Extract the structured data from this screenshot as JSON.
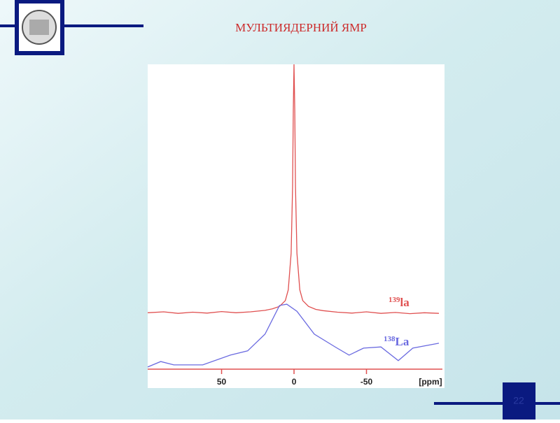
{
  "slide": {
    "title": "МУЛЬТИЯДЕРНИЙ ЯМР",
    "page_number": "22"
  },
  "chart_data": {
    "type": "line",
    "xlim": [
      101,
      -100
    ],
    "xticks": [
      50,
      0,
      -50
    ],
    "xlabel": "[ppm]",
    "ylim": [
      0,
      100
    ],
    "series": [
      {
        "name_sup": "139",
        "name": "la",
        "color": "#e05050",
        "x": [
          101,
          90,
          80,
          70,
          60,
          50,
          40,
          30,
          20,
          15,
          10,
          6,
          4,
          2,
          1,
          0.5,
          0,
          -0.5,
          -1,
          -2,
          -4,
          -6,
          -10,
          -15,
          -20,
          -30,
          -40,
          -50,
          -60,
          -70,
          -80,
          -90,
          -100
        ],
        "values": [
          18.5,
          18.8,
          18.3,
          18.7,
          18.4,
          18.9,
          18.5,
          18.8,
          19.3,
          19.8,
          20.6,
          22.5,
          26,
          38,
          60,
          85,
          100,
          85,
          60,
          38,
          26,
          22.5,
          20.6,
          19.6,
          19.2,
          18.7,
          18.4,
          18.8,
          18.3,
          18.6,
          18.2,
          18.5,
          18.3
        ]
      },
      {
        "name_sup": "138",
        "name": "La",
        "color": "#6a6ae0",
        "x": [
          101,
          92,
          83,
          63,
          44,
          32,
          20,
          10,
          5,
          -2,
          -14,
          -29,
          -38,
          -48,
          -60,
          -72,
          -82,
          -100
        ],
        "values": [
          0.7,
          2.5,
          1.4,
          1.4,
          4.6,
          6,
          11.5,
          20.9,
          21.3,
          19,
          11.5,
          7.1,
          4.6,
          6.9,
          7.3,
          2.8,
          6.9,
          8.5
        ]
      }
    ]
  }
}
